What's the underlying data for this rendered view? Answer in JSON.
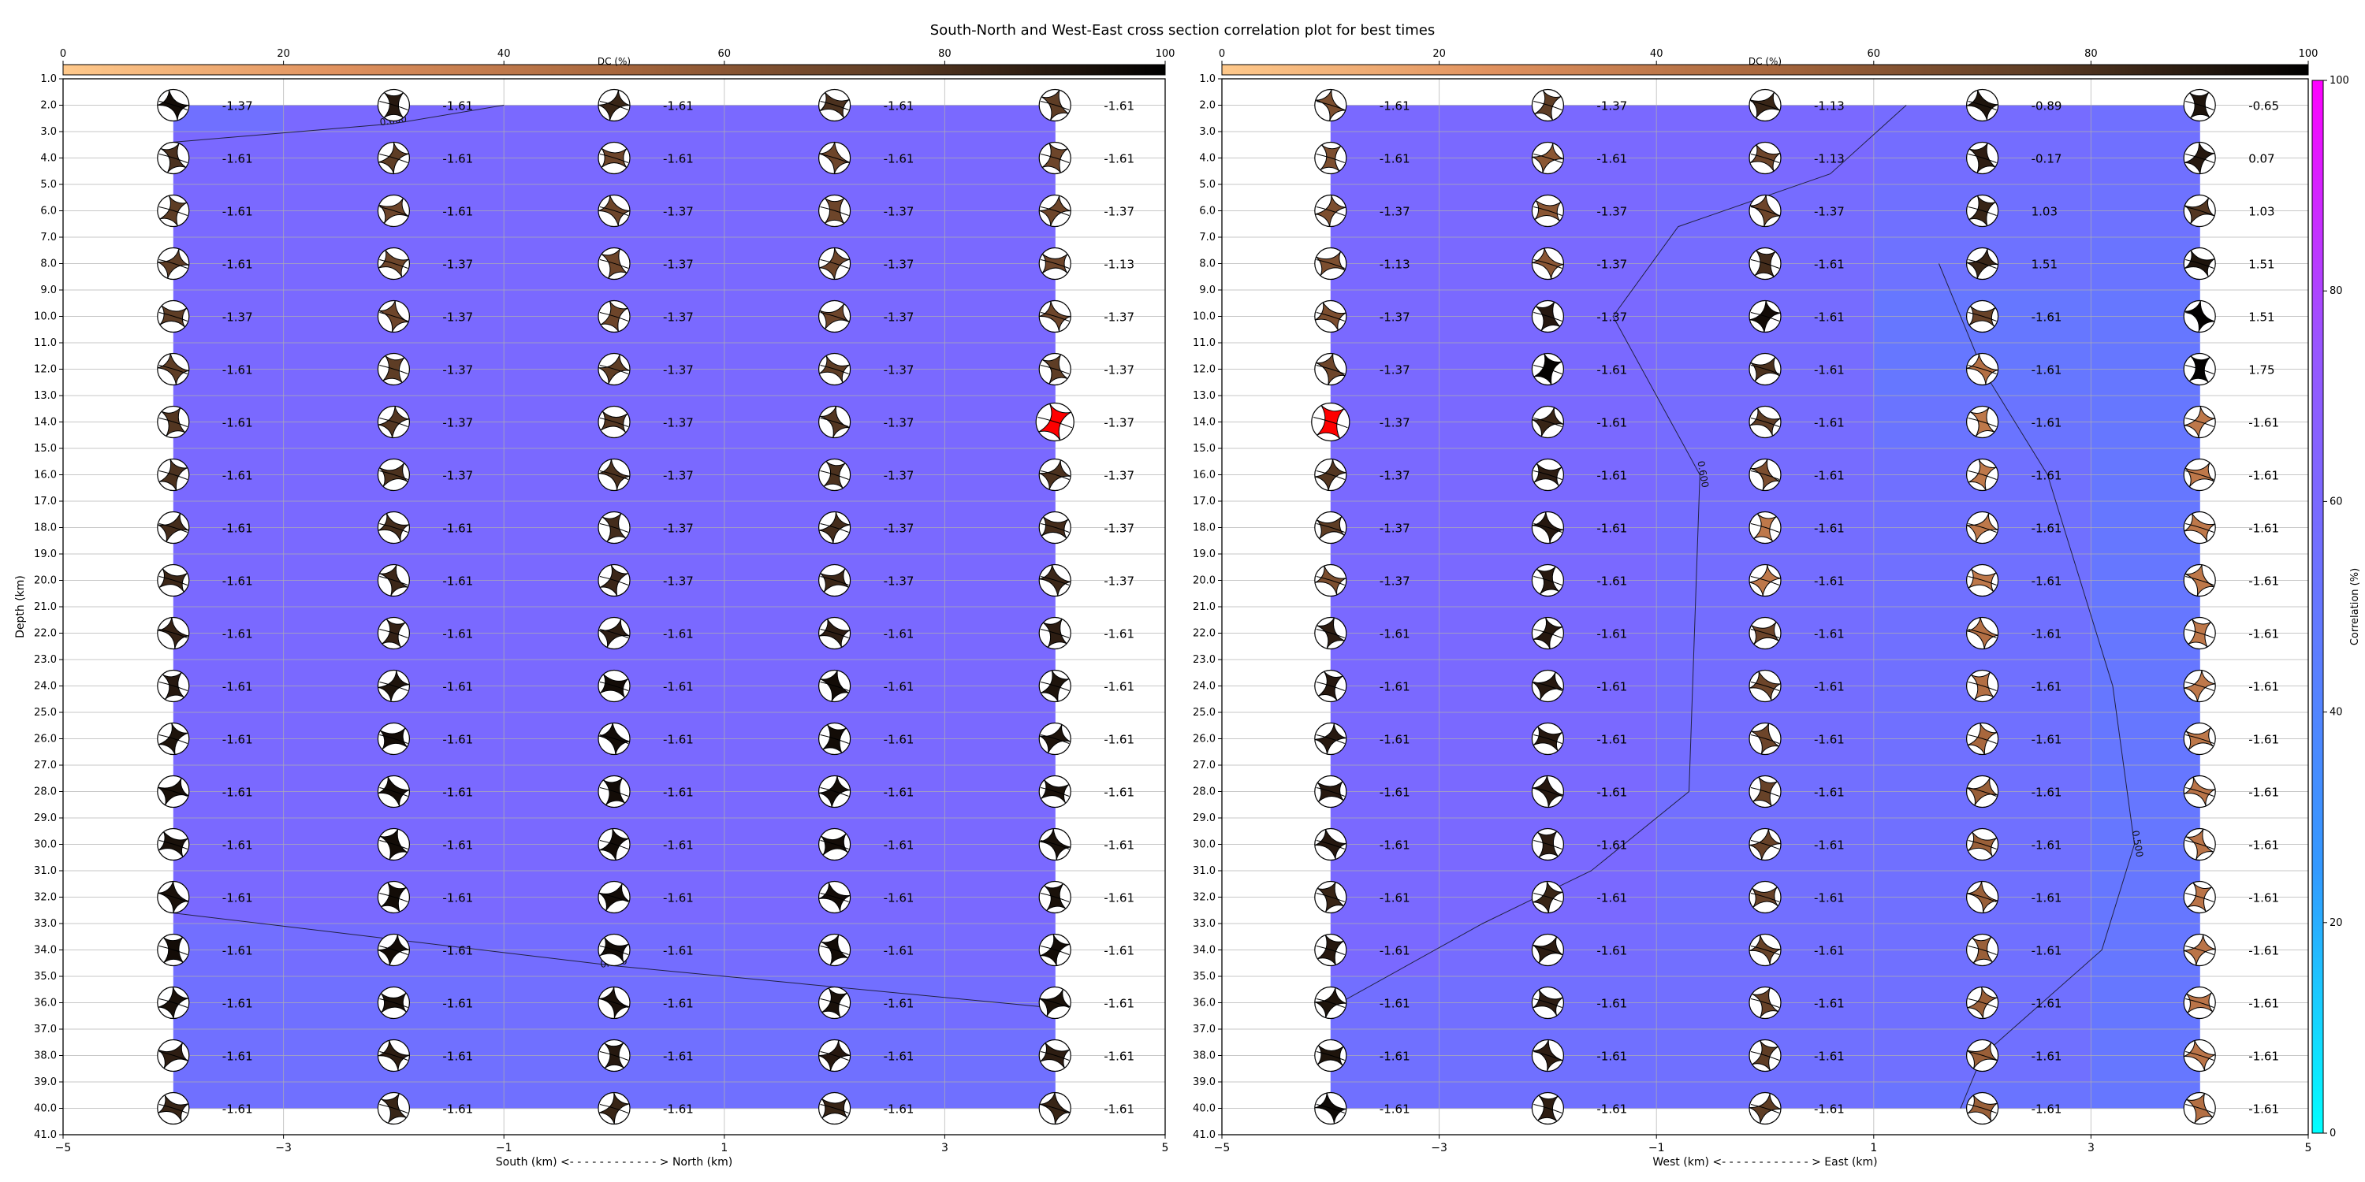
{
  "figure": {
    "title": "South-North and West-East cross section correlation plot for best times"
  },
  "colorbars": {
    "dc": {
      "label": "DC (%)",
      "ticks": [
        "0",
        "20",
        "40",
        "60",
        "80",
        "100"
      ],
      "range": [
        0,
        100
      ],
      "colors": [
        "#ffc98b",
        "#e0915e",
        "#a8673d",
        "#5e3d25",
        "#000000"
      ]
    },
    "correlation": {
      "label": "Correlation (%)",
      "ticks": [
        "0",
        "20",
        "40",
        "60",
        "80",
        "100"
      ],
      "range": [
        0,
        100
      ],
      "colors": [
        "#00ffff",
        "#3399ff",
        "#6677ff",
        "#9955ff",
        "#ff00ff"
      ]
    }
  },
  "chart_data": [
    {
      "type": "heatmap",
      "panel": "south-north",
      "xlabel": "South (km) <- - - - - - - - - - - - > North (km)",
      "ylabel": "Depth (km)",
      "xlim": [
        -5,
        5
      ],
      "ylim": [
        41,
        1
      ],
      "x_ticks": [
        "−5",
        "−3",
        "−1",
        "1",
        "3",
        "5"
      ],
      "x_tick_values": [
        -5,
        -3,
        -1,
        1,
        3,
        5
      ],
      "y_ticks": [
        "1.0",
        "2.0",
        "3.0",
        "4.0",
        "5.0",
        "6.0",
        "7.0",
        "8.0",
        "9.0",
        "10.0",
        "11.0",
        "12.0",
        "13.0",
        "14.0",
        "15.0",
        "16.0",
        "17.0",
        "18.0",
        "19.0",
        "20.0",
        "21.0",
        "22.0",
        "23.0",
        "24.0",
        "25.0",
        "26.0",
        "27.0",
        "28.0",
        "29.0",
        "30.0",
        "31.0",
        "32.0",
        "33.0",
        "34.0",
        "35.0",
        "36.0",
        "37.0",
        "38.0",
        "39.0",
        "40.0",
        "41.0"
      ],
      "grid": true,
      "x_positions": [
        -4,
        -2,
        0,
        2,
        4
      ],
      "depths": [
        2,
        4,
        6,
        8,
        10,
        12,
        14,
        16,
        18,
        20,
        22,
        24,
        26,
        28,
        30,
        32,
        34,
        36,
        38,
        40
      ],
      "time_shift_labels": [
        [
          "-1.37",
          "-1.61",
          "-1.61",
          "-1.61",
          "-1.61"
        ],
        [
          "-1.61",
          "-1.61",
          "-1.61",
          "-1.61",
          "-1.61"
        ],
        [
          "-1.61",
          "-1.61",
          "-1.37",
          "-1.37",
          "-1.37"
        ],
        [
          "-1.61",
          "-1.37",
          "-1.37",
          "-1.37",
          "-1.13"
        ],
        [
          "-1.37",
          "-1.37",
          "-1.37",
          "-1.37",
          "-1.37"
        ],
        [
          "-1.61",
          "-1.37",
          "-1.37",
          "-1.37",
          "-1.37"
        ],
        [
          "-1.61",
          "-1.37",
          "-1.37",
          "-1.37",
          "-1.37"
        ],
        [
          "-1.61",
          "-1.37",
          "-1.37",
          "-1.37",
          "-1.37"
        ],
        [
          "-1.61",
          "-1.61",
          "-1.37",
          "-1.37",
          "-1.37"
        ],
        [
          "-1.61",
          "-1.61",
          "-1.37",
          "-1.37",
          "-1.37"
        ],
        [
          "-1.61",
          "-1.61",
          "-1.61",
          "-1.61",
          "-1.61"
        ],
        [
          "-1.61",
          "-1.61",
          "-1.61",
          "-1.61",
          "-1.61"
        ],
        [
          "-1.61",
          "-1.61",
          "-1.61",
          "-1.61",
          "-1.61"
        ],
        [
          "-1.61",
          "-1.61",
          "-1.61",
          "-1.61",
          "-1.61"
        ],
        [
          "-1.61",
          "-1.61",
          "-1.61",
          "-1.61",
          "-1.61"
        ],
        [
          "-1.61",
          "-1.61",
          "-1.61",
          "-1.61",
          "-1.61"
        ],
        [
          "-1.61",
          "-1.61",
          "-1.61",
          "-1.61",
          "-1.61"
        ],
        [
          "-1.61",
          "-1.61",
          "-1.61",
          "-1.61",
          "-1.61"
        ],
        [
          "-1.61",
          "-1.61",
          "-1.61",
          "-1.61",
          "-1.61"
        ],
        [
          "-1.61",
          "-1.61",
          "-1.61",
          "-1.61",
          "-1.61"
        ]
      ],
      "dc_percent": [
        [
          95,
          90,
          85,
          80,
          75
        ],
        [
          80,
          75,
          70,
          70,
          70
        ],
        [
          75,
          70,
          70,
          70,
          70
        ],
        [
          75,
          70,
          70,
          70,
          70
        ],
        [
          75,
          70,
          70,
          70,
          70
        ],
        [
          75,
          75,
          75,
          75,
          75
        ],
        [
          78,
          78,
          78,
          78,
          80
        ],
        [
          80,
          80,
          80,
          80,
          80
        ],
        [
          82,
          82,
          82,
          82,
          82
        ],
        [
          84,
          84,
          84,
          84,
          84
        ],
        [
          86,
          86,
          88,
          88,
          88
        ],
        [
          90,
          92,
          95,
          95,
          92
        ],
        [
          92,
          95,
          95,
          95,
          92
        ],
        [
          93,
          95,
          95,
          95,
          93
        ],
        [
          93,
          95,
          95,
          95,
          93
        ],
        [
          93,
          95,
          95,
          95,
          93
        ],
        [
          95,
          95,
          95,
          95,
          95
        ],
        [
          93,
          93,
          93,
          93,
          93
        ],
        [
          88,
          88,
          90,
          90,
          88
        ],
        [
          85,
          85,
          85,
          85,
          85
        ]
      ],
      "contours": [
        {
          "level": "0.600",
          "points": [
            [
              -4,
              3.4
            ],
            [
              -2,
              2.7
            ],
            [
              -1,
              2.0
            ]
          ]
        },
        {
          "level": "0.600",
          "points": [
            [
              -4,
              32.6
            ],
            [
              0,
              34.6
            ],
            [
              4,
              36.2
            ]
          ]
        }
      ],
      "correlation_percent": [
        [
          55,
          60,
          60,
          60,
          60
        ],
        [
          60,
          60,
          60,
          60,
          60
        ],
        [
          60,
          60,
          60,
          60,
          60
        ],
        [
          60,
          60,
          60,
          60,
          60
        ],
        [
          60,
          60,
          60,
          60,
          60
        ],
        [
          60,
          60,
          60,
          60,
          60
        ],
        [
          60,
          60,
          60,
          60,
          60
        ],
        [
          60,
          60,
          60,
          60,
          60
        ],
        [
          60,
          60,
          60,
          60,
          60
        ],
        [
          60,
          60,
          60,
          60,
          60
        ],
        [
          60,
          60,
          60,
          60,
          60
        ],
        [
          60,
          60,
          60,
          60,
          60
        ],
        [
          60,
          60,
          60,
          60,
          60
        ],
        [
          60,
          60,
          60,
          60,
          60
        ],
        [
          60,
          60,
          60,
          60,
          60
        ],
        [
          60,
          60,
          60,
          60,
          60
        ],
        [
          56,
          57,
          57,
          58,
          59
        ],
        [
          55,
          55,
          56,
          56,
          57
        ],
        [
          55,
          55,
          55,
          55,
          55
        ],
        [
          55,
          55,
          55,
          55,
          55
        ]
      ],
      "highlighted_beachball": {
        "x": 4,
        "depth": 14,
        "color": "#ff0000"
      }
    },
    {
      "type": "heatmap",
      "panel": "west-east",
      "xlabel": "West (km) <- - - - - - - - - - - - > East (km)",
      "ylabel": "",
      "xlim": [
        -5,
        5
      ],
      "ylim": [
        41,
        1
      ],
      "x_ticks": [
        "−5",
        "−3",
        "−1",
        "1",
        "3",
        "5"
      ],
      "x_tick_values": [
        -5,
        -3,
        -1,
        1,
        3,
        5
      ],
      "y_ticks": [
        "1.0",
        "2.0",
        "3.0",
        "4.0",
        "5.0",
        "6.0",
        "7.0",
        "8.0",
        "9.0",
        "10.0",
        "11.0",
        "12.0",
        "13.0",
        "14.0",
        "15.0",
        "16.0",
        "17.0",
        "18.0",
        "19.0",
        "20.0",
        "21.0",
        "22.0",
        "23.0",
        "24.0",
        "25.0",
        "26.0",
        "27.0",
        "28.0",
        "29.0",
        "30.0",
        "31.0",
        "32.0",
        "33.0",
        "34.0",
        "35.0",
        "36.0",
        "37.0",
        "38.0",
        "39.0",
        "40.0",
        "41.0"
      ],
      "grid": true,
      "x_positions": [
        -4,
        -2,
        0,
        2,
        4
      ],
      "depths": [
        2,
        4,
        6,
        8,
        10,
        12,
        14,
        16,
        18,
        20,
        22,
        24,
        26,
        28,
        30,
        32,
        34,
        36,
        38,
        40
      ],
      "time_shift_labels": [
        [
          "-1.61",
          "-1.37",
          "-1.13",
          "-0.89",
          "-0.65"
        ],
        [
          "-1.61",
          "-1.61",
          "-1.13",
          "-0.17",
          "0.07"
        ],
        [
          "-1.37",
          "-1.37",
          "-1.37",
          "1.03",
          "1.03"
        ],
        [
          "-1.13",
          "-1.37",
          "-1.61",
          "1.51",
          "1.51"
        ],
        [
          "-1.37",
          "-1.37",
          "-1.61",
          "-1.61",
          "1.51"
        ],
        [
          "-1.37",
          "-1.61",
          "-1.61",
          "-1.61",
          "1.75"
        ],
        [
          "-1.37",
          "-1.61",
          "-1.61",
          "-1.61",
          "-1.61"
        ],
        [
          "-1.37",
          "-1.61",
          "-1.61",
          "-1.61",
          "-1.61"
        ],
        [
          "-1.37",
          "-1.61",
          "-1.61",
          "-1.61",
          "-1.61"
        ],
        [
          "-1.37",
          "-1.61",
          "-1.61",
          "-1.61",
          "-1.61"
        ],
        [
          "-1.61",
          "-1.61",
          "-1.61",
          "-1.61",
          "-1.61"
        ],
        [
          "-1.61",
          "-1.61",
          "-1.61",
          "-1.61",
          "-1.61"
        ],
        [
          "-1.61",
          "-1.61",
          "-1.61",
          "-1.61",
          "-1.61"
        ],
        [
          "-1.61",
          "-1.61",
          "-1.61",
          "-1.61",
          "-1.61"
        ],
        [
          "-1.61",
          "-1.61",
          "-1.61",
          "-1.61",
          "-1.61"
        ],
        [
          "-1.61",
          "-1.61",
          "-1.61",
          "-1.61",
          "-1.61"
        ],
        [
          "-1.61",
          "-1.61",
          "-1.61",
          "-1.61",
          "-1.61"
        ],
        [
          "-1.61",
          "-1.61",
          "-1.61",
          "-1.61",
          "-1.61"
        ],
        [
          "-1.61",
          "-1.61",
          "-1.61",
          "-1.61",
          "-1.61"
        ],
        [
          "-1.61",
          "-1.61",
          "-1.61",
          "-1.61",
          "-1.61"
        ]
      ],
      "dc_percent": [
        [
          65,
          75,
          85,
          92,
          92
        ],
        [
          65,
          60,
          70,
          88,
          90
        ],
        [
          65,
          60,
          70,
          85,
          78
        ],
        [
          65,
          60,
          82,
          85,
          92
        ],
        [
          65,
          90,
          95,
          72,
          99
        ],
        [
          70,
          99,
          80,
          45,
          99
        ],
        [
          75,
          85,
          75,
          40,
          40
        ],
        [
          78,
          88,
          65,
          40,
          40
        ],
        [
          75,
          90,
          40,
          40,
          40
        ],
        [
          65,
          90,
          40,
          40,
          40
        ],
        [
          88,
          90,
          70,
          45,
          40
        ],
        [
          90,
          90,
          70,
          45,
          40
        ],
        [
          90,
          90,
          70,
          50,
          40
        ],
        [
          90,
          90,
          72,
          55,
          42
        ],
        [
          90,
          88,
          72,
          55,
          42
        ],
        [
          85,
          85,
          72,
          55,
          42
        ],
        [
          90,
          88,
          72,
          55,
          42
        ],
        [
          92,
          88,
          72,
          55,
          42
        ],
        [
          92,
          88,
          75,
          55,
          42
        ],
        [
          96,
          88,
          75,
          55,
          45
        ]
      ],
      "contours": [
        {
          "level": "0.600",
          "points": [
            [
              1.3,
              2.0
            ],
            [
              0.6,
              4.6
            ],
            [
              -0.8,
              6.6
            ],
            [
              -1.4,
              10.0
            ],
            [
              -0.6,
              16.0
            ],
            [
              -0.7,
              28.0
            ],
            [
              -1.6,
              31.0
            ],
            [
              -2.6,
              33.0
            ],
            [
              -4.0,
              36.2
            ]
          ]
        },
        {
          "level": "0.500",
          "points": [
            [
              1.6,
              8.0
            ],
            [
              2.0,
              12.0
            ],
            [
              2.6,
              16.0
            ],
            [
              3.2,
              24.0
            ],
            [
              3.4,
              30.0
            ],
            [
              3.1,
              34.0
            ],
            [
              2.0,
              38.0
            ],
            [
              1.8,
              40.0
            ]
          ]
        }
      ],
      "correlation_percent": [
        [
          60,
          60,
          60,
          58,
          55
        ],
        [
          60,
          60,
          60,
          57,
          55
        ],
        [
          60,
          60,
          58,
          55,
          54
        ],
        [
          60,
          60,
          58,
          54,
          52
        ],
        [
          60,
          60,
          58,
          50,
          50
        ],
        [
          60,
          60,
          58,
          50,
          50
        ],
        [
          60,
          60,
          58,
          52,
          50
        ],
        [
          60,
          60,
          58,
          55,
          50
        ],
        [
          60,
          60,
          57,
          55,
          50
        ],
        [
          60,
          60,
          57,
          55,
          50
        ],
        [
          60,
          60,
          57,
          55,
          50
        ],
        [
          60,
          60,
          57,
          55,
          50
        ],
        [
          60,
          60,
          57,
          55,
          50
        ],
        [
          60,
          60,
          56,
          55,
          50
        ],
        [
          60,
          60,
          56,
          55,
          50
        ],
        [
          60,
          60,
          56,
          55,
          50
        ],
        [
          60,
          58,
          56,
          55,
          50
        ],
        [
          56,
          56,
          56,
          55,
          50
        ],
        [
          55,
          55,
          55,
          55,
          50
        ],
        [
          55,
          55,
          55,
          52,
          50
        ]
      ],
      "highlighted_beachball": {
        "x": -4,
        "depth": 14,
        "color": "#ff0000"
      }
    }
  ]
}
